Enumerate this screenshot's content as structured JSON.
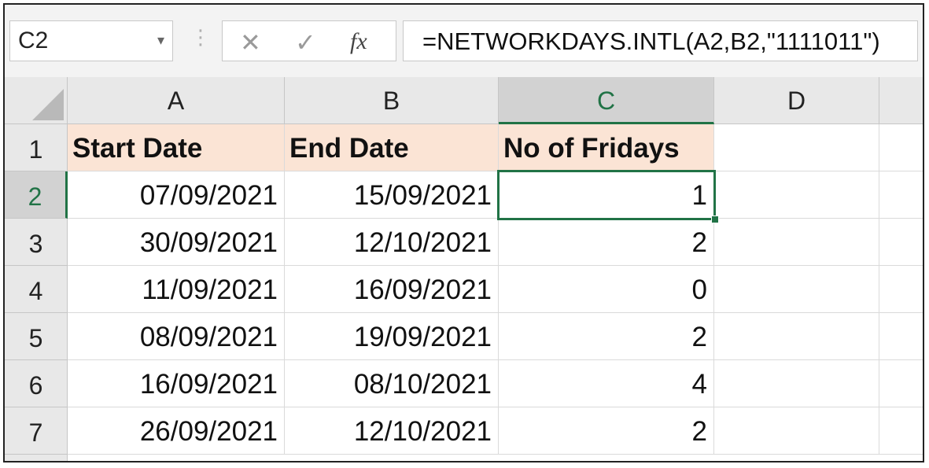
{
  "formula_bar": {
    "name_box": "C2",
    "name_box_dropdown": "▾",
    "separator": "⋮",
    "cancel_icon": "✕",
    "enter_icon": "✓",
    "fx_label": "fx",
    "formula": "=NETWORKDAYS.INTL(A2,B2,\"1111011\")"
  },
  "columns": [
    "A",
    "B",
    "C",
    "D"
  ],
  "selected_column": "C",
  "rows": [
    "1",
    "2",
    "3",
    "4",
    "5",
    "6",
    "7"
  ],
  "selected_row": "2",
  "headers": {
    "a": "Start Date",
    "b": "End Date",
    "c": "No of Fridays"
  },
  "data": [
    {
      "start": "07/09/2021",
      "end": "15/09/2021",
      "fridays": "1"
    },
    {
      "start": "30/09/2021",
      "end": "12/10/2021",
      "fridays": "2"
    },
    {
      "start": "11/09/2021",
      "end": "16/09/2021",
      "fridays": "0"
    },
    {
      "start": "08/09/2021",
      "end": "19/09/2021",
      "fridays": "2"
    },
    {
      "start": "16/09/2021",
      "end": "08/10/2021",
      "fridays": "4"
    },
    {
      "start": "26/09/2021",
      "end": "12/10/2021",
      "fridays": "2"
    }
  ],
  "colors": {
    "accent": "#217346",
    "header_fill": "#fbe4d5"
  }
}
